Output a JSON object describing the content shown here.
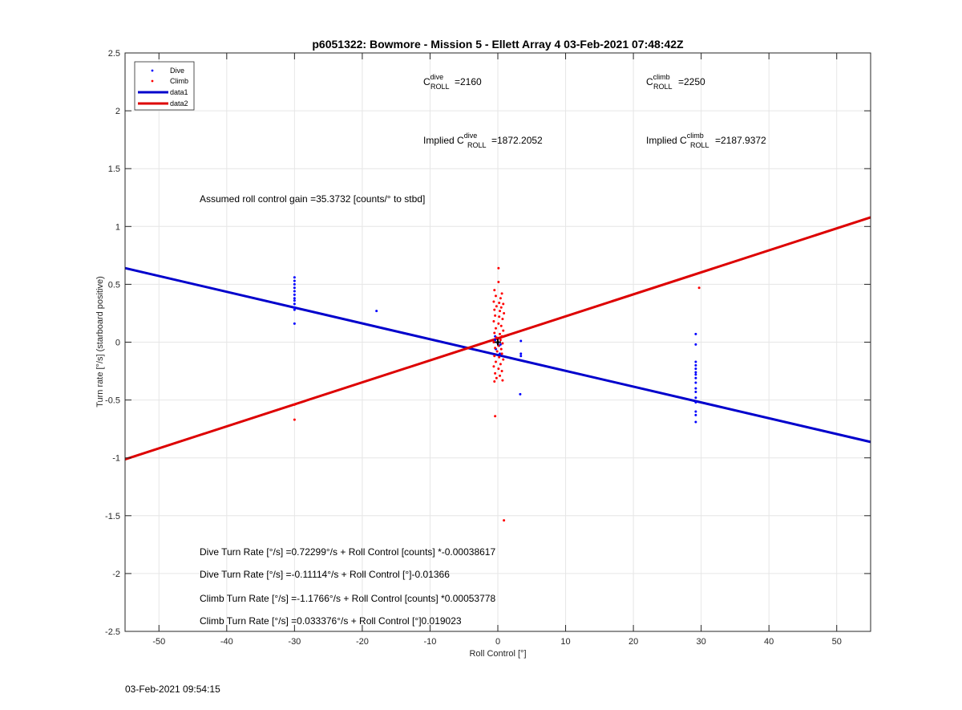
{
  "chart_data": {
    "type": "scatter",
    "title": "p6051322: Bowmore - Mission 5 - Ellett Array 4 03-Feb-2021 07:48:42Z",
    "xlabel": "Roll Control [°]",
    "ylabel": "Turn rate [°/s] (starboard positive)",
    "xlim": [
      -55,
      55
    ],
    "ylim": [
      -2.5,
      2.5
    ],
    "xticks": [
      -50,
      -40,
      -30,
      -20,
      -10,
      0,
      10,
      20,
      30,
      40,
      50
    ],
    "xtick_labels": [
      "-50",
      "-40",
      "-30",
      "-20",
      "-10",
      "0",
      "10",
      "20",
      "30",
      "40",
      "50"
    ],
    "yticks": [
      -2.5,
      -2,
      -1.5,
      -1,
      -0.5,
      0,
      0.5,
      1,
      1.5,
      2,
      2.5
    ],
    "ytick_labels": [
      "-2.5",
      "-2",
      "-1.5",
      "-1",
      "-0.5",
      "0",
      "0.5",
      "1",
      "1.5",
      "2",
      "2.5"
    ],
    "grid": true,
    "legend_position": "top-left",
    "series": [
      {
        "name": "Dive",
        "kind": "scatter",
        "color": "#0000ff",
        "points": [
          [
            -30.0,
            0.56
          ],
          [
            -30.0,
            0.53
          ],
          [
            -30.0,
            0.5
          ],
          [
            -30.0,
            0.47
          ],
          [
            -30.0,
            0.44
          ],
          [
            -30.0,
            0.41
          ],
          [
            -30.0,
            0.38
          ],
          [
            -30.0,
            0.36
          ],
          [
            -30.0,
            0.33
          ],
          [
            -30.0,
            0.3
          ],
          [
            -30.0,
            0.28
          ],
          [
            -30.0,
            0.16
          ],
          [
            -17.9,
            0.27
          ],
          [
            -0.4,
            0.02
          ],
          [
            0.0,
            -0.01
          ],
          [
            -0.6,
            0.0
          ],
          [
            0.2,
            -0.03
          ],
          [
            -0.3,
            -0.06
          ],
          [
            0.3,
            -0.1
          ],
          [
            -0.4,
            0.05
          ],
          [
            0.4,
            -0.02
          ],
          [
            3.4,
            0.01
          ],
          [
            3.4,
            -0.1
          ],
          [
            3.4,
            -0.12
          ],
          [
            3.3,
            -0.45
          ],
          [
            29.2,
            0.07
          ],
          [
            29.2,
            -0.02
          ],
          [
            29.2,
            -0.17
          ],
          [
            29.2,
            -0.2
          ],
          [
            29.2,
            -0.23
          ],
          [
            29.2,
            -0.26
          ],
          [
            29.2,
            -0.28
          ],
          [
            29.2,
            -0.31
          ],
          [
            29.2,
            -0.35
          ],
          [
            29.2,
            -0.4
          ],
          [
            29.2,
            -0.43
          ],
          [
            29.2,
            -0.48
          ],
          [
            29.2,
            -0.52
          ],
          [
            29.2,
            -0.6
          ],
          [
            29.2,
            -0.63
          ],
          [
            29.2,
            -0.69
          ]
        ]
      },
      {
        "name": "Climb",
        "kind": "scatter",
        "color": "#ff0000",
        "points": [
          [
            -30.0,
            -0.54
          ],
          [
            -30.0,
            -0.67
          ],
          [
            0.1,
            0.64
          ],
          [
            0.1,
            0.52
          ],
          [
            -0.5,
            0.45
          ],
          [
            0.6,
            0.42
          ],
          [
            -0.3,
            0.4
          ],
          [
            0.4,
            0.38
          ],
          [
            -0.6,
            0.35
          ],
          [
            0.2,
            0.34
          ],
          [
            0.8,
            0.33
          ],
          [
            -0.2,
            0.31
          ],
          [
            0.5,
            0.3
          ],
          [
            -0.5,
            0.28
          ],
          [
            0.3,
            0.27
          ],
          [
            0.9,
            0.25
          ],
          [
            -0.4,
            0.23
          ],
          [
            0.2,
            0.22
          ],
          [
            0.7,
            0.2
          ],
          [
            -0.6,
            0.18
          ],
          [
            0.1,
            0.16
          ],
          [
            0.5,
            0.14
          ],
          [
            -0.3,
            0.12
          ],
          [
            0.8,
            0.1
          ],
          [
            -0.5,
            0.08
          ],
          [
            0.3,
            0.07
          ],
          [
            0.6,
            0.05
          ],
          [
            -0.2,
            0.04
          ],
          [
            0.4,
            0.02
          ],
          [
            -0.6,
            0.0
          ],
          [
            0.7,
            -0.01
          ],
          [
            0.1,
            -0.03
          ],
          [
            -0.4,
            -0.05
          ],
          [
            0.5,
            -0.06
          ],
          [
            -0.1,
            -0.08
          ],
          [
            0.6,
            -0.1
          ],
          [
            -0.5,
            -0.12
          ],
          [
            0.2,
            -0.13
          ],
          [
            0.8,
            -0.15
          ],
          [
            -0.3,
            -0.17
          ],
          [
            0.4,
            -0.19
          ],
          [
            -0.6,
            -0.21
          ],
          [
            0.1,
            -0.23
          ],
          [
            0.6,
            -0.25
          ],
          [
            -0.4,
            -0.27
          ],
          [
            0.3,
            -0.29
          ],
          [
            -0.2,
            -0.31
          ],
          [
            0.7,
            -0.33
          ],
          [
            -0.5,
            -0.34
          ],
          [
            -0.4,
            -0.64
          ],
          [
            0.9,
            -1.54
          ],
          [
            29.7,
            0.47
          ]
        ]
      },
      {
        "name": "data1",
        "kind": "line",
        "color": "#0000cc",
        "x": [
          -55,
          55
        ],
        "y": [
          0.6403,
          -0.8625
        ]
      },
      {
        "name": "data2",
        "kind": "line",
        "color": "#dd0000",
        "x": [
          -55,
          55
        ],
        "y": [
          -1.0131,
          1.079
        ]
      }
    ],
    "marker": {
      "x": 0.0,
      "y": 0.0,
      "color": "#000000"
    },
    "annotations": {
      "c_roll_dive": {
        "base": "C",
        "sup": "dive",
        "sub": "ROLL",
        "value": "=2160"
      },
      "c_roll_climb": {
        "base": "C",
        "sup": "climb",
        "sub": "ROLL",
        "value": "=2250"
      },
      "implied_dive": {
        "prefix": "Implied ",
        "base": "C",
        "sup": "dive",
        "sub": "ROLL",
        "value": "=1872.2052"
      },
      "implied_climb": {
        "prefix": "Implied ",
        "base": "C",
        "sup": "climb",
        "sub": "ROLL",
        "value": "=2187.9372"
      },
      "gain": "Assumed roll control gain =35.3732 [counts/° to stbd]",
      "eq1": "Dive Turn Rate [°/s] =0.72299°/s + Roll Control [counts] *-0.00038617",
      "eq2": "Dive Turn Rate [°/s] =-0.11114°/s + Roll Control [°]-0.01366",
      "eq3": "Climb Turn Rate [°/s] =-1.1766°/s + Roll Control [counts] *0.00053778",
      "eq4": "Climb Turn Rate [°/s] =0.033376°/s + Roll Control [°]0.019023"
    }
  },
  "footer_timestamp": "03-Feb-2021 09:54:15"
}
